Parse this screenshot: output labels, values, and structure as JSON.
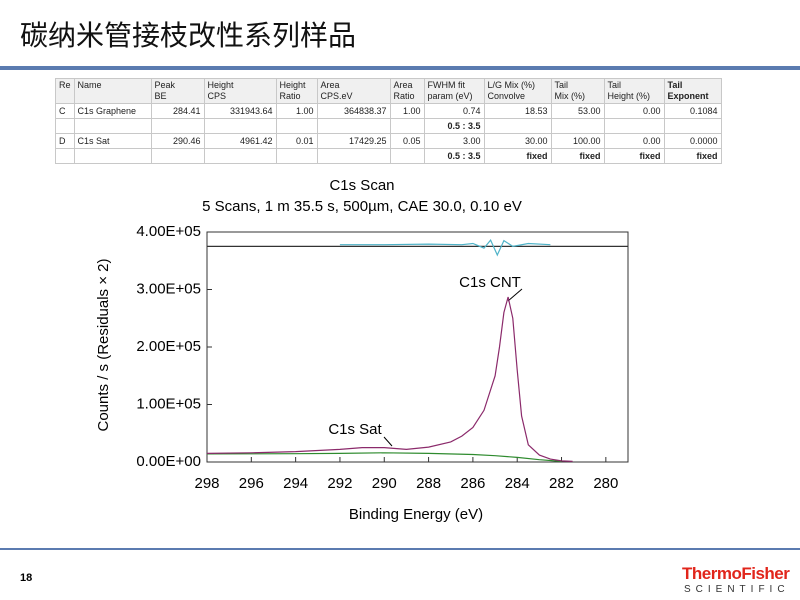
{
  "header": {
    "title": "碳纳米管接枝改性系列样品"
  },
  "table": {
    "header": [
      [
        "Re"
      ],
      [
        "Name"
      ],
      [
        "Peak",
        "BE"
      ],
      [
        "Height",
        "CPS"
      ],
      [
        "Height",
        "Ratio"
      ],
      [
        "Area",
        "CPS.eV"
      ],
      [
        "Area",
        "Ratio"
      ],
      [
        "FWHM fit",
        "param (eV)"
      ],
      [
        "L/G Mix (%)",
        "Convolve"
      ],
      [
        "Tail",
        "Mix (%)"
      ],
      [
        "Tail",
        "Height (%)"
      ],
      [
        "Tail",
        "Exponent"
      ]
    ],
    "rows": [
      [
        "C",
        "C1s Graphene",
        "284.41",
        "331943.64",
        "1.00",
        "364838.37",
        "1.00",
        "0.74",
        "18.53",
        "53.00",
        "0.00",
        "0.1084"
      ],
      [
        null,
        null,
        null,
        null,
        null,
        null,
        null,
        "0.5 : 3.5",
        null,
        null,
        null,
        null
      ],
      [
        "D",
        "C1s Sat",
        "290.46",
        "4961.42",
        "0.01",
        "17429.25",
        "0.05",
        "3.00",
        "30.00",
        "100.00",
        "0.00",
        "0.0000"
      ],
      [
        null,
        null,
        null,
        null,
        null,
        null,
        null,
        "0.5 : 3.5",
        "fixed",
        "fixed",
        "fixed",
        "fixed"
      ]
    ]
  },
  "chart_data": {
    "type": "line",
    "title": "C1s Scan",
    "subtitle": "5 Scans,  1 m 35.5 s,  500µm,  CAE 30.0,  0.10 eV",
    "x_label": "Binding Energy (eV)",
    "y_label": "Counts / s  (Residuals × 2)",
    "xlim": [
      298,
      279
    ],
    "xticks": [
      298,
      296,
      294,
      292,
      290,
      288,
      286,
      284,
      282,
      280
    ],
    "ylim": [
      0,
      400000
    ],
    "yticks": [
      {
        "value": 0,
        "label": "0.00E+00"
      },
      {
        "value": 100000,
        "label": "1.00E+05"
      },
      {
        "value": 200000,
        "label": "2.00E+05"
      },
      {
        "value": 300000,
        "label": "3.00E+05"
      },
      {
        "value": 400000,
        "label": "4.00E+05"
      }
    ],
    "annotations": [
      "C1s CNT",
      "C1s Sat"
    ],
    "series": [
      {
        "color": "#2e8b2e",
        "x": [
          298,
          294,
          292,
          290,
          288,
          286,
          285,
          284,
          283,
          282
        ],
        "values": [
          14000,
          14500,
          15000,
          16000,
          15000,
          13000,
          11000,
          8000,
          4000,
          1000
        ]
      },
      {
        "color": "#8b2a6b",
        "x": [
          298,
          296,
          294,
          292,
          291,
          290,
          289,
          288,
          287,
          286.5,
          286,
          285.5,
          285,
          284.8,
          284.6,
          284.41,
          284.2,
          284,
          283.8,
          283.5,
          283,
          282.5,
          282,
          281.5
        ],
        "values": [
          15000,
          16000,
          18000,
          22000,
          25000,
          25000,
          22000,
          26000,
          35000,
          45000,
          60000,
          90000,
          150000,
          200000,
          260000,
          287000,
          250000,
          160000,
          80000,
          30000,
          12000,
          5000,
          2000,
          1000
        ]
      },
      {
        "color": "#333333",
        "x": [
          298,
          279
        ],
        "values": [
          375000,
          375000
        ]
      },
      {
        "color": "#4fb3c8",
        "x": [
          292,
          290,
          288,
          286.5,
          286,
          285.5,
          285.2,
          284.9,
          284.6,
          284.2,
          283.5,
          282.5
        ],
        "values": [
          378000,
          378000,
          379000,
          378000,
          380000,
          372000,
          386000,
          360000,
          385000,
          375000,
          380000,
          378000
        ]
      }
    ]
  },
  "footer": {
    "page": "18",
    "logo": "ThermoFisher",
    "logo_sub": "SCIENTIFIC"
  }
}
